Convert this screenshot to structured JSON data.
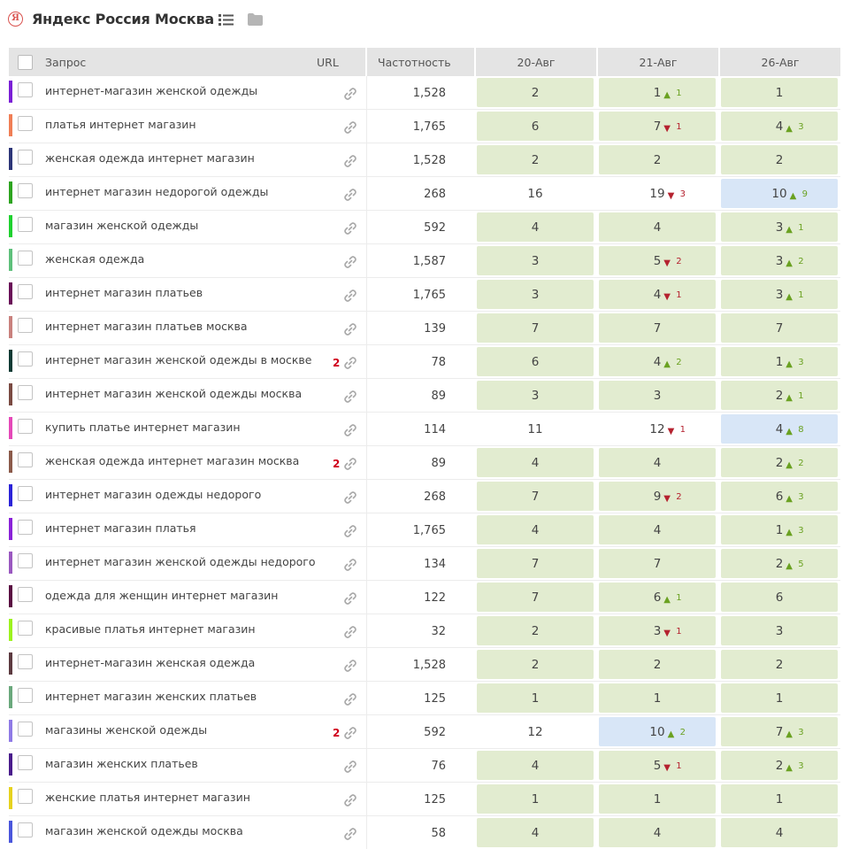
{
  "header": {
    "title": "Яндекс Россия Москва",
    "ya_letter": "Я"
  },
  "columns": {
    "query": "Запрос",
    "url": "URL",
    "freq": "Частотность",
    "dates": [
      "20-Авг",
      "21-Авг",
      "26-Авг"
    ]
  },
  "colors": {
    "cell_green": "#e2ecd0",
    "cell_blue": "#d8e6f7",
    "up": "#6aa121",
    "down": "#b5222f",
    "url_count": "#d0021b"
  },
  "rows": [
    {
      "query": "интернет-магазин женской одежды",
      "color": "#7b1fd6",
      "url_count": "",
      "freq": "1,528",
      "c": [
        {
          "v": "2",
          "bg": "green"
        },
        {
          "v": "1",
          "bg": "green",
          "dir": "up",
          "d": "1"
        },
        {
          "v": "1",
          "bg": "green"
        }
      ]
    },
    {
      "query": "платья интернет магазин",
      "color": "#f07e55",
      "url_count": "",
      "freq": "1,765",
      "c": [
        {
          "v": "6",
          "bg": "green"
        },
        {
          "v": "7",
          "bg": "green",
          "dir": "down",
          "d": "1"
        },
        {
          "v": "4",
          "bg": "green",
          "dir": "up",
          "d": "3"
        }
      ]
    },
    {
      "query": "женская одежда интернет магазин",
      "color": "#2d3678",
      "url_count": "",
      "freq": "1,528",
      "c": [
        {
          "v": "2",
          "bg": "green"
        },
        {
          "v": "2",
          "bg": "green"
        },
        {
          "v": "2",
          "bg": "green"
        }
      ]
    },
    {
      "query": "интернет магазин недорогой одежды",
      "color": "#2da41f",
      "url_count": "",
      "freq": "268",
      "c": [
        {
          "v": "16",
          "bg": "none"
        },
        {
          "v": "19",
          "bg": "none",
          "dir": "down",
          "d": "3"
        },
        {
          "v": "10",
          "bg": "blue",
          "dir": "up",
          "d": "9"
        }
      ]
    },
    {
      "query": "магазин женской одежды",
      "color": "#1fd12f",
      "url_count": "",
      "freq": "592",
      "c": [
        {
          "v": "4",
          "bg": "green"
        },
        {
          "v": "4",
          "bg": "green"
        },
        {
          "v": "3",
          "bg": "green",
          "dir": "up",
          "d": "1"
        }
      ]
    },
    {
      "query": "женская одежда",
      "color": "#5ec07b",
      "url_count": "",
      "freq": "1,587",
      "c": [
        {
          "v": "3",
          "bg": "green"
        },
        {
          "v": "5",
          "bg": "green",
          "dir": "down",
          "d": "2"
        },
        {
          "v": "3",
          "bg": "green",
          "dir": "up",
          "d": "2"
        }
      ]
    },
    {
      "query": "интернет магазин платьев",
      "color": "#6a1058",
      "url_count": "",
      "freq": "1,765",
      "c": [
        {
          "v": "3",
          "bg": "green"
        },
        {
          "v": "4",
          "bg": "green",
          "dir": "down",
          "d": "1"
        },
        {
          "v": "3",
          "bg": "green",
          "dir": "up",
          "d": "1"
        }
      ]
    },
    {
      "query": "интернет магазин платьев москва",
      "color": "#c9817d",
      "url_count": "",
      "freq": "139",
      "c": [
        {
          "v": "7",
          "bg": "green"
        },
        {
          "v": "7",
          "bg": "green"
        },
        {
          "v": "7",
          "bg": "green"
        }
      ]
    },
    {
      "query": "интернет магазин женской одежды в москве",
      "color": "#0e3a34",
      "url_count": "2",
      "freq": "78",
      "c": [
        {
          "v": "6",
          "bg": "green"
        },
        {
          "v": "4",
          "bg": "green",
          "dir": "up",
          "d": "2"
        },
        {
          "v": "1",
          "bg": "green",
          "dir": "up",
          "d": "3"
        }
      ]
    },
    {
      "query": "интернет магазин женской одежды москва",
      "color": "#7a4a42",
      "url_count": "",
      "freq": "89",
      "c": [
        {
          "v": "3",
          "bg": "green"
        },
        {
          "v": "3",
          "bg": "green"
        },
        {
          "v": "2",
          "bg": "green",
          "dir": "up",
          "d": "1"
        }
      ]
    },
    {
      "query": "купить платье интернет магазин",
      "color": "#e548b8",
      "url_count": "",
      "freq": "114",
      "c": [
        {
          "v": "11",
          "bg": "none"
        },
        {
          "v": "12",
          "bg": "none",
          "dir": "down",
          "d": "1"
        },
        {
          "v": "4",
          "bg": "blue",
          "dir": "up",
          "d": "8"
        }
      ]
    },
    {
      "query": "женская одежда интернет магазин москва",
      "color": "#8b5a4a",
      "url_count": "2",
      "freq": "89",
      "c": [
        {
          "v": "4",
          "bg": "green"
        },
        {
          "v": "4",
          "bg": "green"
        },
        {
          "v": "2",
          "bg": "green",
          "dir": "up",
          "d": "2"
        }
      ]
    },
    {
      "query": "интернет магазин одежды недорого",
      "color": "#2b23d8",
      "url_count": "",
      "freq": "268",
      "c": [
        {
          "v": "7",
          "bg": "green"
        },
        {
          "v": "9",
          "bg": "green",
          "dir": "down",
          "d": "2"
        },
        {
          "v": "6",
          "bg": "green",
          "dir": "up",
          "d": "3"
        }
      ]
    },
    {
      "query": "интернет магазин платья",
      "color": "#8a22d8",
      "url_count": "",
      "freq": "1,765",
      "c": [
        {
          "v": "4",
          "bg": "green"
        },
        {
          "v": "4",
          "bg": "green"
        },
        {
          "v": "1",
          "bg": "green",
          "dir": "up",
          "d": "3"
        }
      ]
    },
    {
      "query": "интернет магазин женской одежды недорого",
      "color": "#9a58c0",
      "url_count": "",
      "freq": "134",
      "c": [
        {
          "v": "7",
          "bg": "green"
        },
        {
          "v": "7",
          "bg": "green"
        },
        {
          "v": "2",
          "bg": "green",
          "dir": "up",
          "d": "5"
        }
      ]
    },
    {
      "query": "одежда для женщин интернет магазин",
      "color": "#5a0e42",
      "url_count": "",
      "freq": "122",
      "c": [
        {
          "v": "7",
          "bg": "green"
        },
        {
          "v": "6",
          "bg": "green",
          "dir": "up",
          "d": "1"
        },
        {
          "v": "6",
          "bg": "green"
        }
      ]
    },
    {
      "query": "красивые платья интернет магазин",
      "color": "#9cf21e",
      "url_count": "",
      "freq": "32",
      "c": [
        {
          "v": "2",
          "bg": "green"
        },
        {
          "v": "3",
          "bg": "green",
          "dir": "down",
          "d": "1"
        },
        {
          "v": "3",
          "bg": "green"
        }
      ]
    },
    {
      "query": "интернет-магазин женская одежда",
      "color": "#5c3a40",
      "url_count": "",
      "freq": "1,528",
      "c": [
        {
          "v": "2",
          "bg": "green"
        },
        {
          "v": "2",
          "bg": "green"
        },
        {
          "v": "2",
          "bg": "green"
        }
      ]
    },
    {
      "query": "интернет магазин женских платьев",
      "color": "#6aa87c",
      "url_count": "",
      "freq": "125",
      "c": [
        {
          "v": "1",
          "bg": "green"
        },
        {
          "v": "1",
          "bg": "green"
        },
        {
          "v": "1",
          "bg": "green"
        }
      ]
    },
    {
      "query": "магазины женской одежды",
      "color": "#8f7ae6",
      "url_count": "2",
      "freq": "592",
      "c": [
        {
          "v": "12",
          "bg": "none"
        },
        {
          "v": "10",
          "bg": "blue",
          "dir": "up",
          "d": "2"
        },
        {
          "v": "7",
          "bg": "green",
          "dir": "up",
          "d": "3"
        }
      ]
    },
    {
      "query": "магазин женских платьев",
      "color": "#4a1c8c",
      "url_count": "",
      "freq": "76",
      "c": [
        {
          "v": "4",
          "bg": "green"
        },
        {
          "v": "5",
          "bg": "green",
          "dir": "down",
          "d": "1"
        },
        {
          "v": "2",
          "bg": "green",
          "dir": "up",
          "d": "3"
        }
      ]
    },
    {
      "query": "женские платья интернет магазин",
      "color": "#e6d21e",
      "url_count": "",
      "freq": "125",
      "c": [
        {
          "v": "1",
          "bg": "green"
        },
        {
          "v": "1",
          "bg": "green"
        },
        {
          "v": "1",
          "bg": "green"
        }
      ]
    },
    {
      "query": "магазин женской одежды москва",
      "color": "#4a56dc",
      "url_count": "",
      "freq": "58",
      "c": [
        {
          "v": "4",
          "bg": "green"
        },
        {
          "v": "4",
          "bg": "green"
        },
        {
          "v": "4",
          "bg": "green"
        }
      ]
    }
  ]
}
